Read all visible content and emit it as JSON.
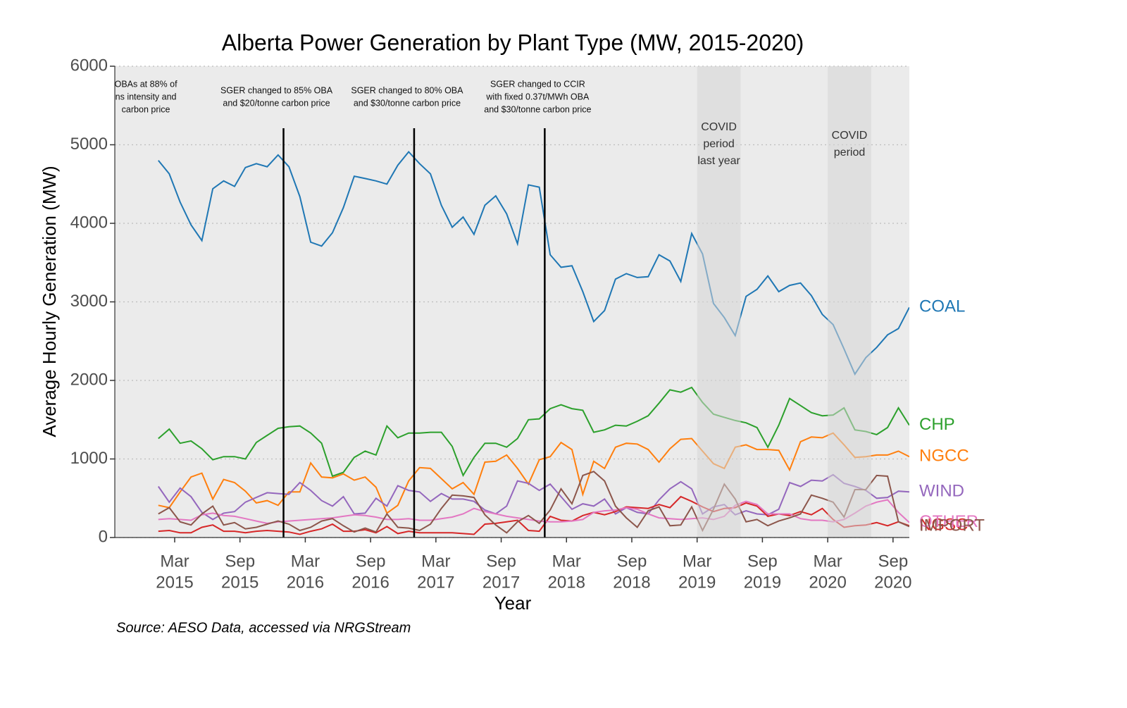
{
  "chart_data": {
    "type": "line",
    "title": "Alberta Power Generation by Plant Type (MW, 2015-2020)",
    "x_label": "Year",
    "y_label": "Average Hourly Generation (MW)",
    "source": "Source: AESO Data, accessed via NRGStream",
    "xlim": [
      "2014-09",
      "2020-10"
    ],
    "ylim": [
      0,
      6000
    ],
    "yticks": [
      0,
      1000,
      2000,
      3000,
      4000,
      5000,
      6000
    ],
    "grid": true,
    "xticks": [
      {
        "value": "2015-03",
        "label": [
          "Mar",
          "2015"
        ]
      },
      {
        "value": "2015-09",
        "label": [
          "Sep",
          "2015"
        ]
      },
      {
        "value": "2016-03",
        "label": [
          "Mar",
          "2016"
        ]
      },
      {
        "value": "2016-09",
        "label": [
          "Sep",
          "2016"
        ]
      },
      {
        "value": "2017-03",
        "label": [
          "Mar",
          "2017"
        ]
      },
      {
        "value": "2017-09",
        "label": [
          "Sep",
          "2017"
        ]
      },
      {
        "value": "2018-03",
        "label": [
          "Mar",
          "2018"
        ]
      },
      {
        "value": "2018-09",
        "label": [
          "Sep",
          "2018"
        ]
      },
      {
        "value": "2019-03",
        "label": [
          "Mar",
          "2019"
        ]
      },
      {
        "value": "2019-09",
        "label": [
          "Sep",
          "2019"
        ]
      },
      {
        "value": "2020-03",
        "label": [
          "Mar",
          "2020"
        ]
      },
      {
        "value": "2020-09",
        "label": [
          "Sep",
          "2020"
        ]
      }
    ],
    "x": [
      "2015-01",
      "2015-02",
      "2015-03",
      "2015-04",
      "2015-05",
      "2015-06",
      "2015-07",
      "2015-08",
      "2015-09",
      "2015-10",
      "2015-11",
      "2015-12",
      "2016-01",
      "2016-02",
      "2016-03",
      "2016-04",
      "2016-05",
      "2016-06",
      "2016-07",
      "2016-08",
      "2016-09",
      "2016-10",
      "2016-11",
      "2016-12",
      "2017-01",
      "2017-02",
      "2017-03",
      "2017-04",
      "2017-05",
      "2017-06",
      "2017-07",
      "2017-08",
      "2017-09",
      "2017-10",
      "2017-11",
      "2017-12",
      "2018-01",
      "2018-02",
      "2018-03",
      "2018-04",
      "2018-05",
      "2018-06",
      "2018-07",
      "2018-08",
      "2018-09",
      "2018-10",
      "2018-11",
      "2018-12",
      "2019-01",
      "2019-02",
      "2019-03",
      "2019-04",
      "2019-05",
      "2019-06",
      "2019-07",
      "2019-08",
      "2019-09",
      "2019-10",
      "2019-11",
      "2019-12",
      "2020-01",
      "2020-02",
      "2020-03",
      "2020-04",
      "2020-05",
      "2020-06",
      "2020-07",
      "2020-08",
      "2020-09",
      "2020-10"
    ],
    "series": [
      {
        "name": "COAL",
        "color": "#1f77b4",
        "values": [
          4800,
          4630,
          4270,
          3980,
          3780,
          4440,
          4540,
          4470,
          4710,
          4760,
          4720,
          4870,
          4720,
          4340,
          3760,
          3710,
          3880,
          4200,
          4600,
          4570,
          4540,
          4500,
          4740,
          4910,
          4760,
          4630,
          4230,
          3950,
          4080,
          3860,
          4230,
          4350,
          4120,
          3740,
          4490,
          4460,
          3600,
          3440,
          3460,
          3130,
          2750,
          2890,
          3290,
          3360,
          3310,
          3320,
          3600,
          3520,
          3260,
          3870,
          3610,
          2980,
          2800,
          2570,
          3070,
          3160,
          3330,
          3130,
          3210,
          3240,
          3080,
          2840,
          2710,
          2400,
          2080,
          2290,
          2420,
          2580,
          2660,
          2930
        ]
      },
      {
        "name": "CHP",
        "color": "#2ca02c",
        "values": [
          1260,
          1380,
          1200,
          1230,
          1130,
          990,
          1030,
          1030,
          1000,
          1210,
          1300,
          1390,
          1410,
          1420,
          1330,
          1200,
          780,
          830,
          1020,
          1100,
          1050,
          1420,
          1270,
          1330,
          1330,
          1340,
          1340,
          1160,
          790,
          1020,
          1200,
          1200,
          1150,
          1260,
          1500,
          1510,
          1640,
          1690,
          1640,
          1620,
          1340,
          1370,
          1430,
          1420,
          1480,
          1550,
          1710,
          1880,
          1850,
          1910,
          1720,
          1570,
          1530,
          1490,
          1460,
          1400,
          1150,
          1430,
          1770,
          1680,
          1590,
          1550,
          1560,
          1650,
          1370,
          1350,
          1310,
          1400,
          1650,
          1430
        ]
      },
      {
        "name": "NGCC",
        "color": "#ff7f0e",
        "values": [
          410,
          380,
          580,
          770,
          820,
          490,
          740,
          700,
          590,
          440,
          470,
          410,
          580,
          580,
          950,
          770,
          760,
          810,
          730,
          770,
          640,
          310,
          410,
          720,
          890,
          880,
          750,
          620,
          700,
          550,
          960,
          970,
          1050,
          880,
          680,
          990,
          1030,
          1210,
          1120,
          550,
          970,
          880,
          1150,
          1200,
          1190,
          1120,
          960,
          1130,
          1250,
          1260,
          1100,
          940,
          880,
          1150,
          1180,
          1120,
          1120,
          1110,
          860,
          1220,
          1280,
          1270,
          1330,
          1180,
          1020,
          1030,
          1050,
          1050,
          1100,
          1030
        ]
      },
      {
        "name": "WIND",
        "color": "#9467bd",
        "values": [
          650,
          450,
          630,
          520,
          320,
          230,
          310,
          330,
          450,
          510,
          570,
          560,
          550,
          700,
          600,
          470,
          400,
          520,
          300,
          310,
          500,
          400,
          660,
          600,
          580,
          460,
          560,
          490,
          490,
          460,
          350,
          300,
          400,
          720,
          690,
          600,
          680,
          520,
          360,
          430,
          400,
          490,
          300,
          380,
          320,
          300,
          480,
          620,
          710,
          620,
          300,
          390,
          420,
          290,
          340,
          300,
          290,
          360,
          700,
          650,
          730,
          720,
          800,
          690,
          650,
          600,
          500,
          510,
          590,
          580
        ]
      },
      {
        "name": "NGSC",
        "color": "#d62728",
        "values": [
          80,
          90,
          60,
          60,
          130,
          160,
          80,
          80,
          60,
          80,
          90,
          80,
          70,
          40,
          80,
          110,
          170,
          80,
          80,
          100,
          60,
          140,
          50,
          80,
          60,
          60,
          60,
          60,
          50,
          40,
          170,
          180,
          200,
          220,
          90,
          80,
          270,
          220,
          210,
          280,
          320,
          290,
          330,
          390,
          380,
          370,
          420,
          380,
          520,
          460,
          390,
          330,
          370,
          380,
          440,
          400,
          270,
          300,
          280,
          330,
          290,
          370,
          230,
          130,
          150,
          160,
          190,
          150,
          200,
          150
        ]
      },
      {
        "name": "OTHER",
        "color": "#e377c2",
        "values": [
          230,
          240,
          230,
          220,
          290,
          310,
          280,
          270,
          240,
          210,
          180,
          200,
          210,
          220,
          230,
          240,
          250,
          270,
          290,
          280,
          260,
          230,
          230,
          240,
          220,
          220,
          240,
          260,
          300,
          370,
          330,
          300,
          270,
          250,
          230,
          210,
          200,
          200,
          210,
          230,
          320,
          340,
          350,
          380,
          360,
          300,
          250,
          240,
          230,
          240,
          250,
          230,
          270,
          410,
          460,
          420,
          300,
          300,
          300,
          240,
          220,
          220,
          200,
          230,
          310,
          400,
          450,
          480,
          320,
          190
        ]
      },
      {
        "name": "IMPORT",
        "color": "#8c564b",
        "values": [
          300,
          380,
          200,
          160,
          300,
          400,
          160,
          190,
          110,
          130,
          170,
          210,
          170,
          90,
          130,
          210,
          240,
          150,
          70,
          120,
          70,
          300,
          130,
          120,
          90,
          170,
          370,
          540,
          530,
          510,
          290,
          160,
          60,
          200,
          280,
          180,
          350,
          620,
          430,
          790,
          840,
          720,
          400,
          250,
          130,
          340,
          390,
          150,
          160,
          390,
          90,
          360,
          680,
          490,
          200,
          230,
          150,
          210,
          250,
          300,
          540,
          500,
          450,
          260,
          610,
          610,
          790,
          780,
          200,
          140
        ]
      }
    ],
    "notes": [
      {
        "x": "2015-01",
        "lines": [
          "OBAs at 88% of",
          "ns intensity and",
          "carbon price"
        ]
      }
    ],
    "events": [
      {
        "x": "2016-01",
        "lines": [
          "SGER changed to 85% OBA",
          "and $20/tonne carbon price"
        ]
      },
      {
        "x": "2017-01",
        "lines": [
          "SGER changed to 80% OBA",
          "and $30/tonne carbon price"
        ]
      },
      {
        "x": "2018-01",
        "lines": [
          "SGER changed to CCIR",
          "with fixed 0.37t/MWh OBA",
          "and $30/tonne carbon price"
        ]
      }
    ],
    "shaded_regions": [
      {
        "start": "2019-03",
        "end": "2019-06",
        "lines": [
          "COVID",
          "period",
          "last year"
        ]
      },
      {
        "start": "2020-03",
        "end": "2020-06",
        "lines": [
          "COVID",
          "period"
        ]
      }
    ]
  }
}
